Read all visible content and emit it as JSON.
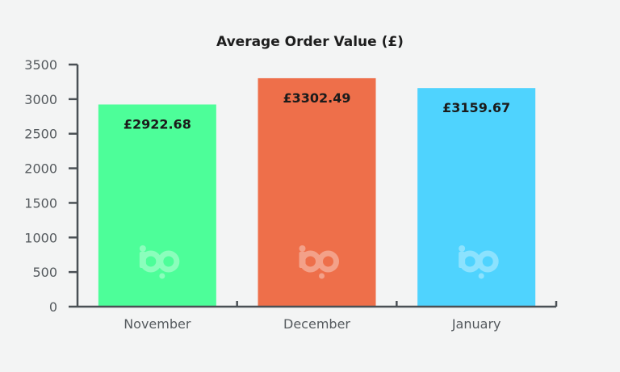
{
  "chart_data": {
    "type": "bar",
    "title": "Average Order Value (£)",
    "xlabel": "",
    "ylabel": "",
    "categories": [
      "November",
      "December",
      "January"
    ],
    "values": [
      2922.68,
      3302.49,
      3159.67
    ],
    "value_labels": [
      "£2922.68",
      "£3302.49",
      "£3159.67"
    ],
    "ylim": [
      0,
      3500
    ],
    "yticks": [
      0,
      500,
      1000,
      1500,
      2000,
      2500,
      3000,
      3500
    ],
    "ytick_labels": [
      "0",
      "500",
      "1000",
      "1500",
      "2000",
      "2500",
      "3000",
      "3500"
    ],
    "bar_colors": [
      "#4dfe99",
      "#ee6f4a",
      "#4fd3fe"
    ],
    "grid": false,
    "legend": "none",
    "watermark": "bp"
  }
}
